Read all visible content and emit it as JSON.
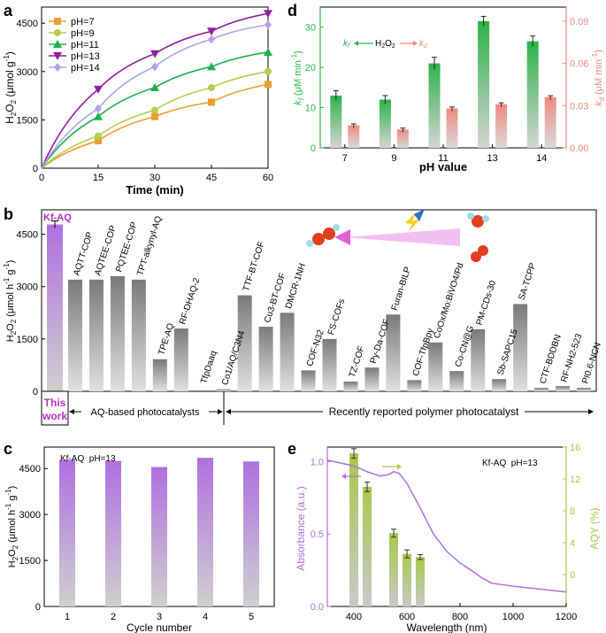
{
  "panel_labels": {
    "a": "a",
    "b": "b",
    "c": "c",
    "d": "d",
    "e": "e"
  },
  "colors": {
    "ph7": "#e8a030",
    "ph9": "#b8cc50",
    "ph11": "#20b050",
    "ph13": "#9020a0",
    "ph14": "#b8a0e8",
    "green": "#2db34a",
    "salmon": "#ef8a80",
    "purple": "#b070e0",
    "kf_text": "#b030c0",
    "bar_grey": "#8c8c8c",
    "lime": "#a8c84a",
    "abs_line": "#b070d8"
  },
  "chart_data": [
    {
      "panel": "a",
      "type": "line",
      "xlabel": "Time (min)",
      "ylabel": "H2O2 (μmol g-1)",
      "ylabel_parts": {
        "h": "H",
        "s2a": "2",
        "o": "O",
        "s2b": "2",
        "unit": " (μmol g",
        "exp": "-1",
        "close": ")"
      },
      "xlim": [
        0,
        60
      ],
      "ylim": [
        0,
        5000
      ],
      "xticks": [
        0,
        15,
        30,
        45,
        60
      ],
      "yticks": [
        0,
        1500,
        3000,
        4500
      ],
      "legend_position": "top-left",
      "series": [
        {
          "name": "pH=7",
          "x": [
            15,
            30,
            45,
            60
          ],
          "y": [
            850,
            1600,
            2050,
            2600
          ]
        },
        {
          "name": "pH=9",
          "x": [
            15,
            30,
            45,
            60
          ],
          "y": [
            1000,
            1800,
            2500,
            3000
          ]
        },
        {
          "name": "pH=11",
          "x": [
            15,
            30,
            45,
            60
          ],
          "y": [
            1600,
            2500,
            3150,
            3600
          ]
        },
        {
          "name": "pH=13",
          "x": [
            15,
            30,
            45,
            60
          ],
          "y": [
            2450,
            3550,
            4250,
            4800
          ]
        },
        {
          "name": "pH=14",
          "x": [
            15,
            30,
            45,
            60
          ],
          "y": [
            1850,
            3150,
            4000,
            4450
          ]
        }
      ]
    },
    {
      "panel": "b",
      "type": "bar",
      "ylabel": "H2O2 (μmol h-1 g-1)",
      "ylabel_parts": {
        "h": "H",
        "s2a": "2",
        "o": "O",
        "s2b": "2",
        "unit": " (μmol h",
        "exp1": "-1",
        "g": " g",
        "exp2": "-1",
        "close": ")"
      },
      "ylim": [
        0,
        5200
      ],
      "yticks": [
        0,
        1500,
        3000,
        4500
      ],
      "categories": [
        "Kf-AQ",
        "AQTT-COP",
        "AQTEE-COP",
        "PQTEE-COP",
        "TPT-alkynyl-AQ",
        "TPE-AQ",
        "RF-DHAQ-2",
        "TfpDaaq",
        "Co1/AQ/C3N4",
        "TTF-BT-COF",
        "Cu3-BT-COF",
        "DMCR-1NH",
        "COF-N32",
        "FS-COFs",
        "TZ-COF",
        "Py-Da-COF",
        "Furan-BILP",
        "COF-TfpBpy",
        "CoOx/Mo:BiVO4/Pd",
        "Co-CN@G",
        "PM-CDs-30",
        "Sb-SAPC15",
        "SA-TCPP",
        "CTF-BDDBN",
        "RF-NH2-523",
        "PI0.6-NCN"
      ],
      "values": [
        4780,
        3200,
        3200,
        3300,
        3200,
        920,
        1800,
        0,
        60,
        2750,
        1850,
        2250,
        600,
        1500,
        280,
        680,
        2200,
        320,
        1400,
        580,
        1780,
        350,
        2500,
        100,
        150,
        100
      ],
      "highlight_label": "Kf-AQ",
      "this_work_label": [
        "This",
        "work"
      ],
      "group_labels": {
        "aq": "AQ-based photocatalysts",
        "polymer": "Recently reported polymer photocatalyst"
      }
    },
    {
      "panel": "c",
      "type": "bar",
      "annotation": "Kf-AQ  pH=13",
      "xlabel": "Cycle number",
      "ylabel": "H2O2 (μmol h-1 g-1)",
      "ylabel_parts": {
        "h": "H",
        "s2a": "2",
        "o": "O",
        "s2b": "2",
        "unit": " (μmol h",
        "exp1": "-1",
        "g": " g",
        "exp2": "-1",
        "close": ")"
      },
      "ylim": [
        0,
        5200
      ],
      "yticks": [
        0,
        1500,
        3000,
        4500
      ],
      "categories": [
        "1",
        "2",
        "3",
        "4",
        "5"
      ],
      "values": [
        4780,
        4750,
        4550,
        4850,
        4730
      ]
    },
    {
      "panel": "d",
      "type": "bar",
      "xlabel": "pH value",
      "ylabel_left": "kf (μM min-1)",
      "ylabel_right": "kd (μM min-1)",
      "ylabel_left_parts": {
        "k": "k",
        "sub": "f",
        "unit": " (μM min",
        "exp": "-1",
        "close": ")"
      },
      "ylabel_right_parts": {
        "k": "k",
        "sub": "d",
        "unit": " (μM min",
        "exp": "-1",
        "close": ")"
      },
      "legend_parts": {
        "kf": "k",
        "kf_sub": "f",
        "h": "H",
        "s2a": "2",
        "o": "O",
        "s2b": "2",
        "kd": "k",
        "kd_sub": "d"
      },
      "categories": [
        "7",
        "9",
        "11",
        "13",
        "14"
      ],
      "ylim_left": [
        0,
        35
      ],
      "ylim_right": [
        0,
        0.1
      ],
      "yticks_left": [
        0,
        10,
        20,
        30
      ],
      "yticks_right": [
        0.0,
        0.03,
        0.06,
        0.09
      ],
      "series": [
        {
          "name": "kf",
          "axis": "left",
          "values": [
            13.0,
            12.0,
            21.0,
            31.5,
            26.5
          ],
          "errors": [
            1.2,
            1.0,
            1.5,
            1.2,
            1.3
          ]
        },
        {
          "name": "kd",
          "axis": "right",
          "values": [
            0.016,
            0.013,
            0.028,
            0.031,
            0.036
          ],
          "errors": [
            0.001,
            0.001,
            0.001,
            0.001,
            0.001
          ]
        }
      ]
    },
    {
      "panel": "e",
      "type": "line",
      "annotation": "Kf-AQ  pH=13",
      "xlabel": "Wavelength (nm)",
      "ylabel_left": "Absorbance (a.u.)",
      "ylabel_right": "AQY (%)",
      "xlim": [
        300,
        1200
      ],
      "ylim_left": [
        0,
        1.1
      ],
      "ylim_right": [
        -4,
        16
      ],
      "xticks": [
        400,
        600,
        800,
        1000,
        1200
      ],
      "yticks_left": [
        0.0,
        0.5,
        1.0
      ],
      "yticks_right": [
        0,
        4,
        8,
        12,
        16
      ],
      "absorbance": {
        "x": [
          300,
          350,
          400,
          450,
          500,
          530,
          550,
          570,
          600,
          650,
          700,
          750,
          800,
          850,
          880,
          900,
          920,
          1000,
          1100,
          1200
        ],
        "y": [
          1.01,
          0.99,
          0.97,
          0.93,
          0.9,
          0.91,
          0.93,
          0.92,
          0.85,
          0.68,
          0.5,
          0.38,
          0.3,
          0.24,
          0.2,
          0.18,
          0.16,
          0.14,
          0.12,
          0.1
        ]
      },
      "aqy_bars": {
        "x": [
          400,
          450,
          550,
          600,
          650
        ],
        "values": [
          15.2,
          11.0,
          5.2,
          2.6,
          2.2
        ],
        "errors": [
          0.6,
          0.6,
          0.5,
          0.5,
          0.3
        ]
      }
    }
  ]
}
